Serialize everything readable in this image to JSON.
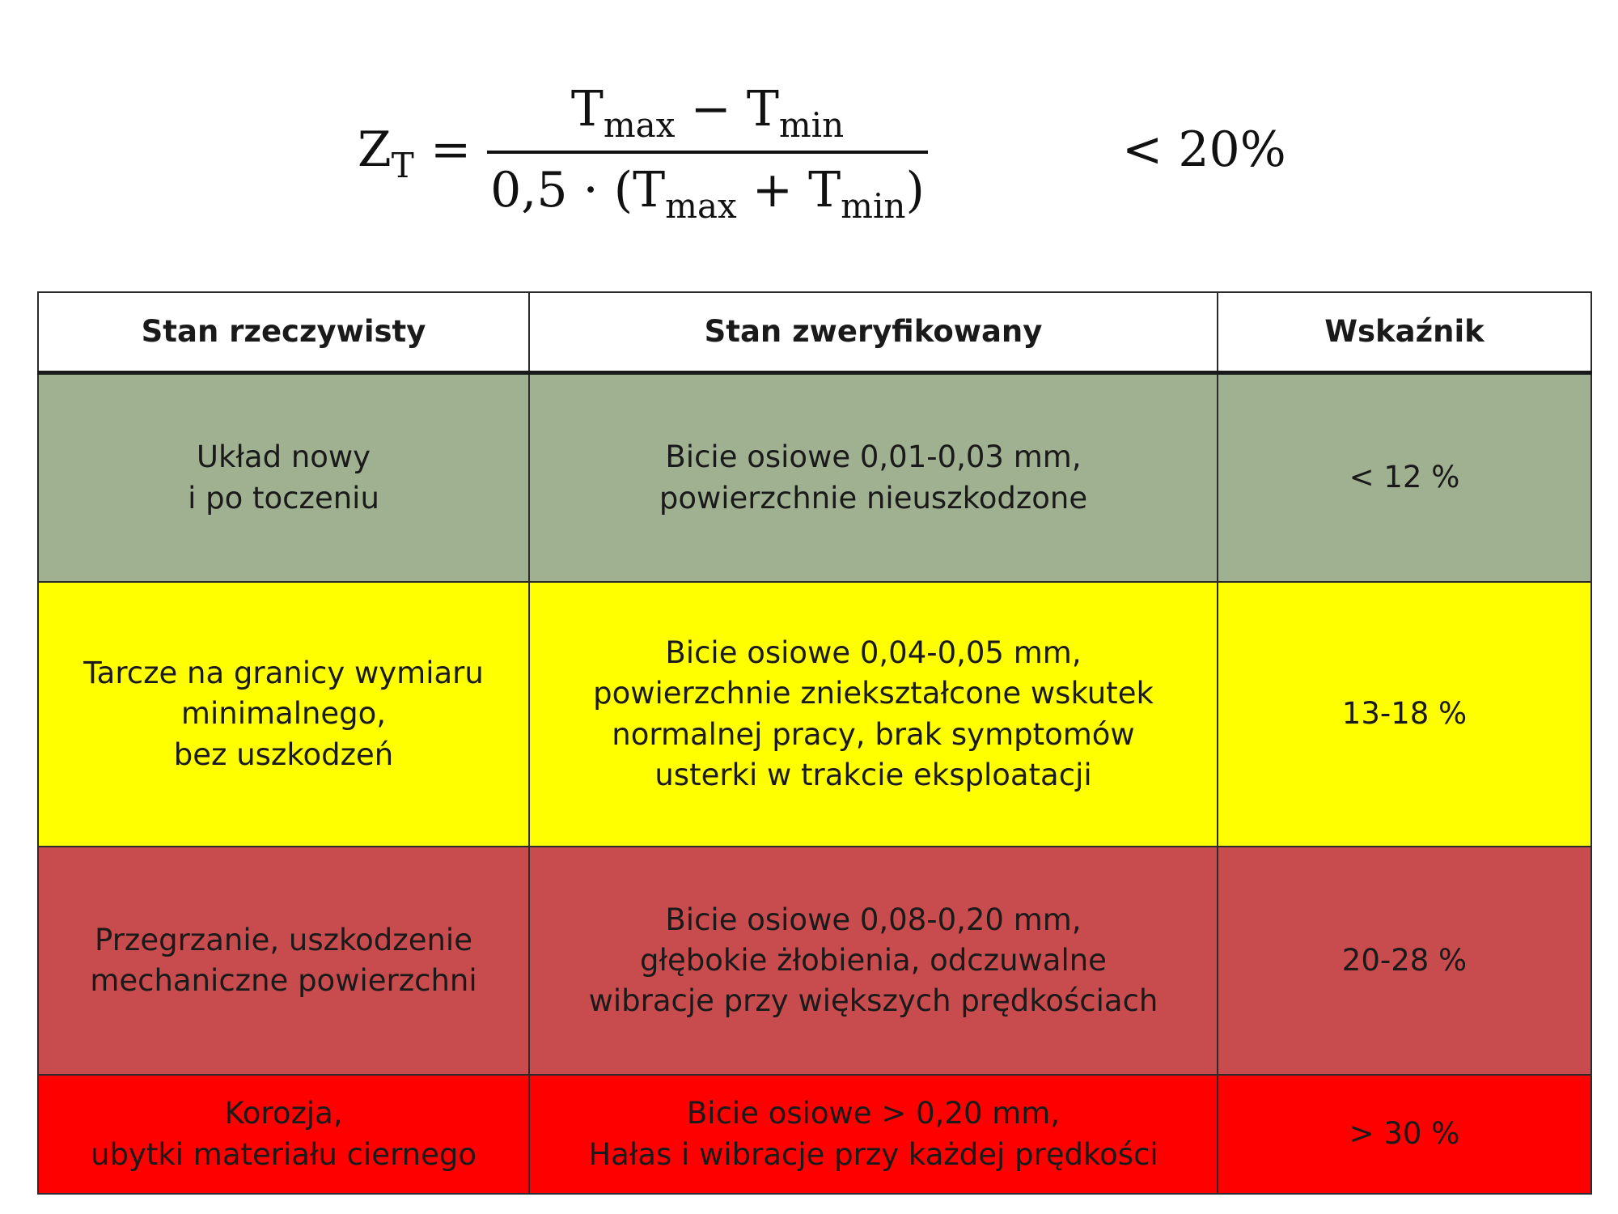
{
  "formula": {
    "lhs_symbol": "Z",
    "lhs_subscript": "T",
    "equals": "=",
    "numerator": {
      "a": "T",
      "a_sub": "max",
      "op": " − ",
      "b": "T",
      "b_sub": "min"
    },
    "denominator": {
      "prefix": "0,5 · (",
      "a": "T",
      "a_sub": "max",
      "op": " + ",
      "b": "T",
      "b_sub": "min",
      "suffix": ")"
    },
    "limit": "< 20%"
  },
  "table": {
    "headers": [
      "Stan rzeczywisty",
      "Stan zweryfikowany",
      "Wskaźnik"
    ],
    "rows": [
      {
        "color": "#9fb191",
        "state": "Układ nowy\ni po toczeniu",
        "verified": "Bicie osiowe 0,01-0,03 mm,\npowierzchnie nieuszkodzone",
        "indicator": "< 12 %"
      },
      {
        "color": "#ffff00",
        "state": "Tarcze na granicy wymiaru\nminimalnego,\nbez  uszkodzeń",
        "verified": "Bicie osiowe 0,04-0,05 mm,\npowierzchnie zniekształcone wskutek\nnormalnej pracy, brak  symptomów\nusterki  w trakcie eksploatacji",
        "indicator": "13-18 %"
      },
      {
        "color": "#c84b4e",
        "state": "Przegrzanie, uszkodzenie\nmechaniczne powierzchni",
        "verified": "Bicie osiowe 0,08-0,20 mm,\ngłębokie żłobienia, odczuwalne\nwibracje przy większych prędkościach",
        "indicator": "20-28 %"
      },
      {
        "color": "#ff0000",
        "state": "Korozja,\n ubytki materiału ciernego",
        "verified": "Bicie osiowe > 0,20 mm,\nHałas i wibracje przy każdej prędkości",
        "indicator": "> 30 %"
      }
    ]
  }
}
